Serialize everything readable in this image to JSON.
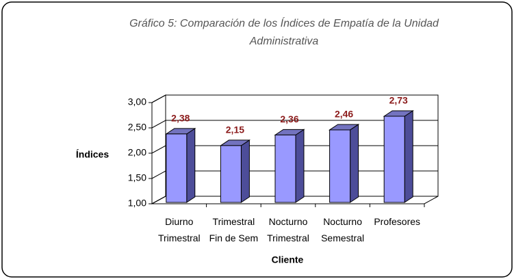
{
  "chart_data": {
    "type": "bar3d",
    "title": "Gráfico 5: Comparación de los Índices de  Empatía de la Unidad Administrativa",
    "y_label": "Índices",
    "x_label": "Cliente",
    "categories": [
      "Diurno Trimestral",
      "Trimestral Fin de Sem",
      "Nocturno Trimestral",
      "Nocturno Semestral",
      "Profesores"
    ],
    "values": [
      2.38,
      2.15,
      2.36,
      2.46,
      2.73
    ],
    "value_labels": [
      "2,38",
      "2,15",
      "2,36",
      "2,46",
      "2,73"
    ],
    "color": "#9999ff",
    "label_color": "#8b1a1a",
    "ylim": [
      1,
      3
    ],
    "yticks": [
      {
        "value": 1,
        "label": "1,00"
      },
      {
        "value": 1.5,
        "label": "1,50"
      },
      {
        "value": 2,
        "label": "2,00"
      },
      {
        "value": 2.5,
        "label": "2,50"
      },
      {
        "value": 3,
        "label": "3,00"
      }
    ],
    "grid": true
  }
}
